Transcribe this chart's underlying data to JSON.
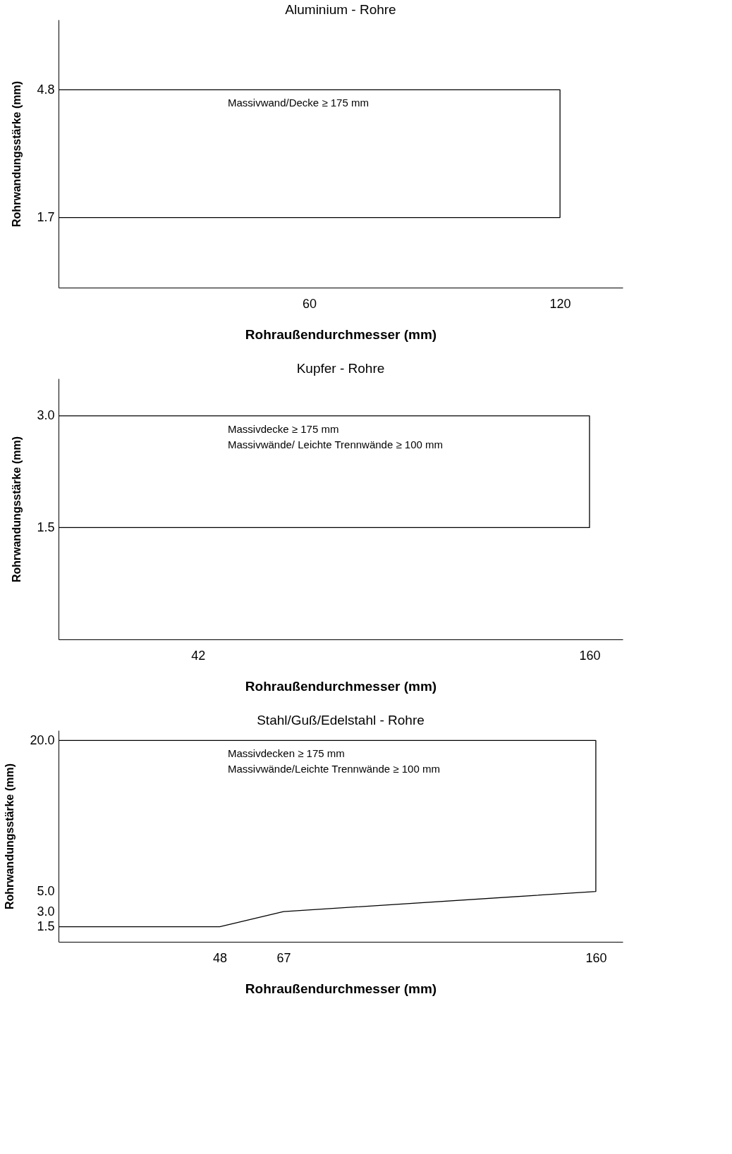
{
  "chart_data": [
    {
      "type": "line",
      "title": "Aluminium - Rohre",
      "xlabel": "Rohraußendurchmesser (mm)",
      "ylabel": "Rohrwandungsstärke (mm)",
      "xlim": [
        0,
        135
      ],
      "ylim": [
        0,
        6.5
      ],
      "xticks": [
        60,
        120
      ],
      "yticks": [
        1.7,
        4.8
      ],
      "grid": false,
      "series": [
        {
          "color": "#000000",
          "x": [
            0,
            120,
            120,
            0
          ],
          "values": [
            4.8,
            4.8,
            1.7,
            1.7
          ]
        }
      ],
      "annotations": [
        "Massivwand/Decke ≥ 175 mm"
      ]
    },
    {
      "type": "line",
      "title": "Kupfer - Rohre",
      "xlabel": "Rohraußendurchmesser (mm)",
      "ylabel": "Rohrwandungsstärke (mm)",
      "xlim": [
        0,
        170
      ],
      "ylim": [
        0,
        3.5
      ],
      "xticks": [
        42,
        160
      ],
      "yticks": [
        {
          "value": 1.5,
          "label": "1.5"
        },
        {
          "value": 3,
          "label": "3.0"
        }
      ],
      "grid": false,
      "series": [
        {
          "color": "#000000",
          "x": [
            0,
            160,
            160,
            0
          ],
          "values": [
            3.0,
            3.0,
            1.5,
            1.5
          ]
        }
      ],
      "annotations": [
        "Massivdecke ≥ 175 mm",
        "Massivwände/ Leichte Trennwände ≥ 100 mm"
      ]
    },
    {
      "type": "line",
      "title": "Stahl/Guß/Edelstahl - Rohre",
      "xlabel": "Rohraußendurchmesser (mm)",
      "ylabel": "Rohrwandungsstärke (mm)",
      "xlim": [
        0,
        168
      ],
      "ylim": [
        0,
        21
      ],
      "xticks": [
        48,
        67,
        160
      ],
      "yticks": [
        {
          "value": 1.5,
          "label": "1.5"
        },
        {
          "value": 3,
          "label": "3.0"
        },
        {
          "value": 5,
          "label": "5.0"
        },
        {
          "value": 20,
          "label": "20.0"
        }
      ],
      "grid": false,
      "series": [
        {
          "color": "#000000",
          "x": [
            0,
            160,
            160,
            67,
            48,
            0
          ],
          "values": [
            20.0,
            20.0,
            5.0,
            3.0,
            1.5,
            1.5
          ]
        }
      ],
      "annotations": [
        "Massivdecken ≥ 175 mm",
        "Massivwände/Leichte Trennwände ≥ 100 mm"
      ]
    }
  ]
}
